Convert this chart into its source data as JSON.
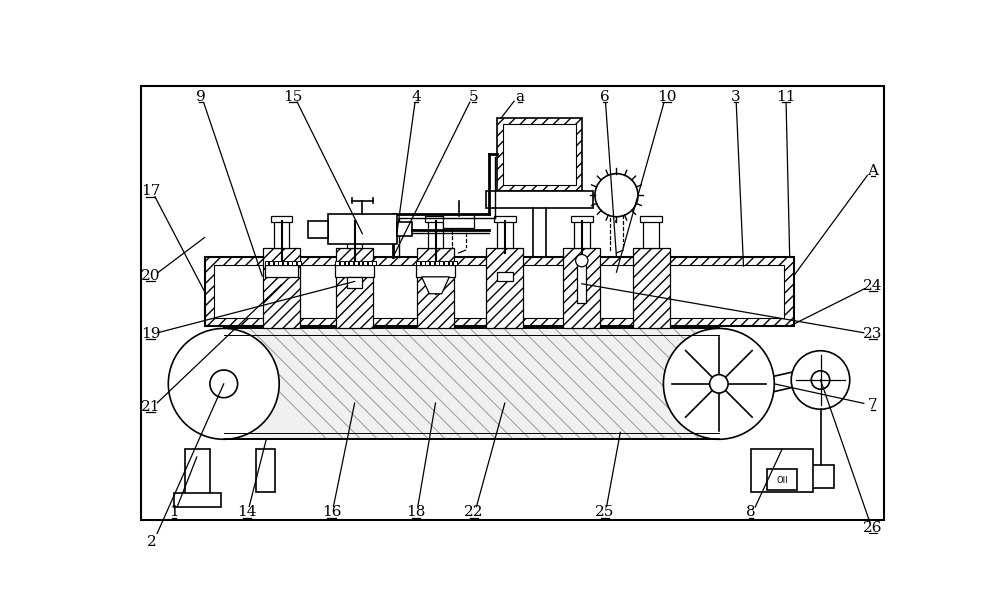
{
  "bg_color": "#ffffff",
  "line_color": "#000000",
  "fig_width": 10.0,
  "fig_height": 6.0,
  "dpi": 100,
  "top_labels": {
    "9": 0.095,
    "15": 0.215,
    "4": 0.375,
    "5": 0.45,
    "a": 0.51,
    "6": 0.62,
    "10": 0.7,
    "3": 0.79,
    "11": 0.855
  },
  "right_labels": {
    "A": 0.13,
    "24": 0.275,
    "23": 0.34,
    "7": 0.43
  },
  "left_labels": {
    "17": 0.155,
    "20": 0.265,
    "19": 0.34,
    "21": 0.435
  },
  "bottom_labels": {
    "1": 0.06,
    "14": 0.155,
    "16": 0.265,
    "18": 0.375,
    "22": 0.45,
    "25": 0.62,
    "8": 0.81
  },
  "side_labels": {
    "2": 0.61,
    "26": 0.59
  }
}
